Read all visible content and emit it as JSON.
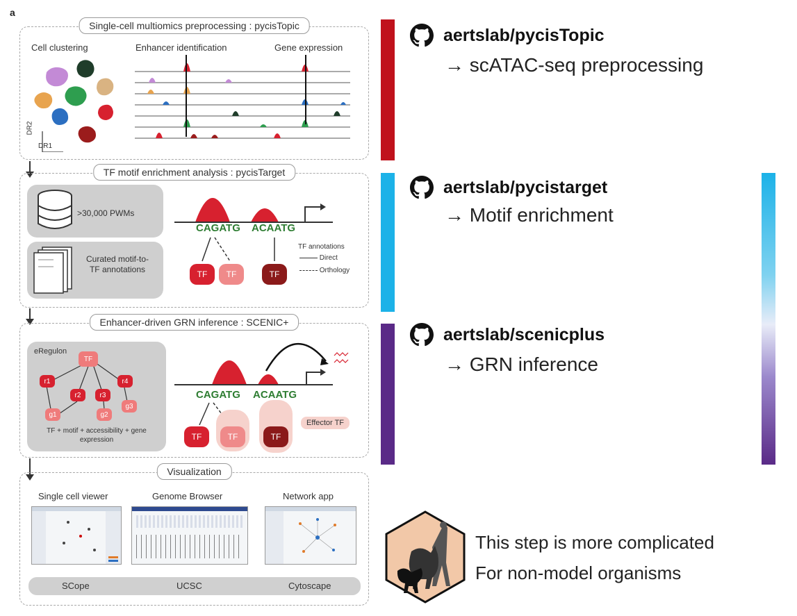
{
  "panel_letter": "a",
  "sections": {
    "preprocessing": {
      "title": "Single-cell multiomics preprocessing : pycisTopic",
      "labels": [
        "Cell clustering",
        "Enhancer identification",
        "Gene expression"
      ],
      "axis_y": "DR2",
      "axis_x": "DR1"
    },
    "motif": {
      "title": "TF motif enrichment analysis : pycisTarget",
      "pwm_label": ">30,000 PWMs",
      "curated_label": "Curated motif-to-TF annotations",
      "motif1": "CAGATG",
      "motif2": "ACAATG",
      "legend_title": "TF annotations",
      "legend_direct": "Direct",
      "legend_orthology": "Orthology",
      "tf_labels": [
        "TF",
        "TF",
        "TF"
      ]
    },
    "grn": {
      "title": "Enhancer-driven GRN inference : SCENIC+",
      "eregulon_label": "eRegulon",
      "root": "TF",
      "regions": [
        "r1",
        "r2",
        "r3",
        "r4"
      ],
      "genes": [
        "g1",
        "g2",
        "g3"
      ],
      "caption": "TF + motif + accessibility + gene expression",
      "effector_label": "Effector TF",
      "motif1": "CAGATG",
      "motif2": "ACAATG",
      "tf_labels": [
        "TF",
        "TF",
        "TF"
      ]
    },
    "visualization": {
      "title": "Visualization",
      "tools": [
        {
          "header": "Single cell viewer",
          "footer": "SCope"
        },
        {
          "header": "Genome Browser",
          "footer": "UCSC"
        },
        {
          "header": "Network app",
          "footer": "Cytoscape"
        }
      ]
    }
  },
  "repos": [
    {
      "name": "aertslab/pycisTopic",
      "desc": "→ scATAC-seq preprocessing",
      "icon": "github-icon",
      "bar_color": "#c0121c"
    },
    {
      "name": "aertslab/pycistarget",
      "desc": "→ Motif enrichment",
      "icon": "github-icon",
      "bar_color": "#1cb2e8"
    },
    {
      "name": "aertslab/scenicplus",
      "desc": "→ GRN inference",
      "icon": "github-icon",
      "bar_color": "#5a2a87"
    }
  ],
  "note": {
    "line1": "This step is more complicated",
    "line2": "For non-model organisms",
    "icon": "animals-hexagon-icon"
  },
  "colors": {
    "tf_red": "#d7212f",
    "tf_pink": "#ef8a8a",
    "tf_dark": "#8b1a1a",
    "gradient_top": "#1cb2e8",
    "gradient_bottom": "#5a2a87"
  }
}
